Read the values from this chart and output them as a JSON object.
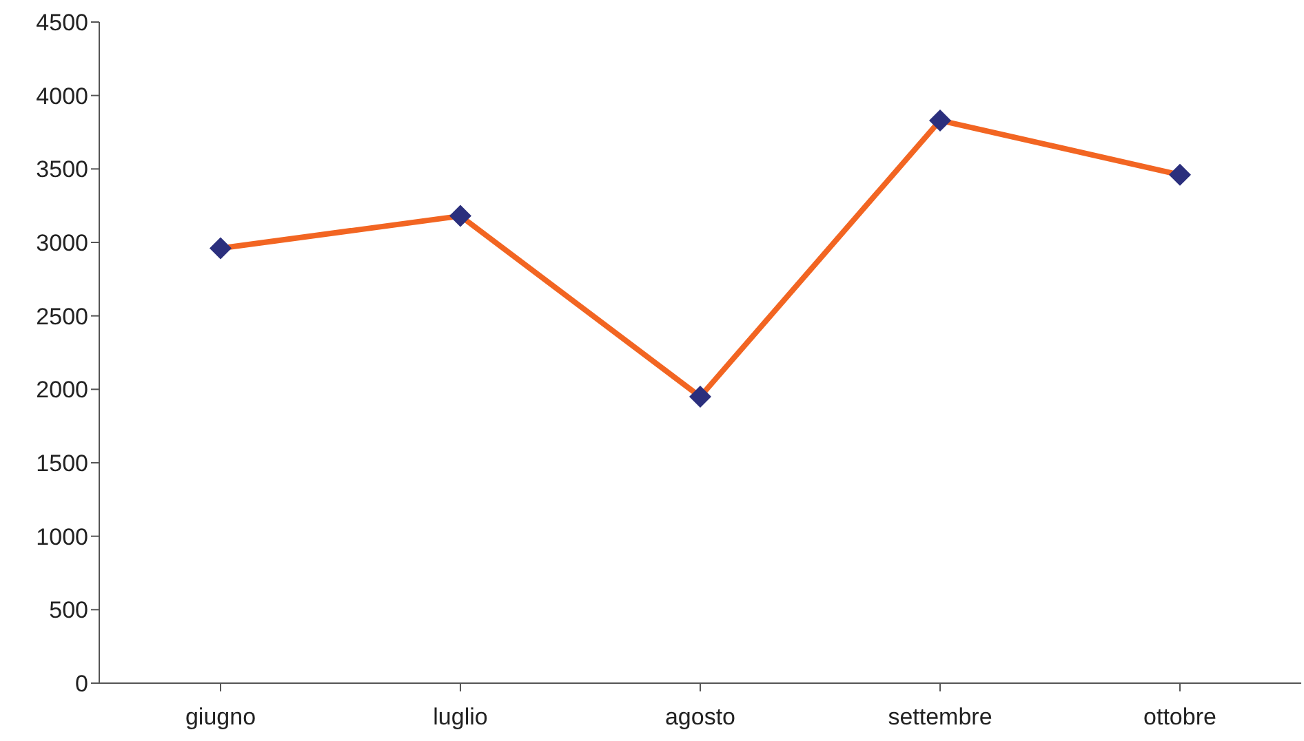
{
  "chart_data": {
    "type": "line",
    "categories": [
      "giugno",
      "luglio",
      "agosto",
      "settembre",
      "ottobre"
    ],
    "series": [
      {
        "color": "#f26522",
        "colors": [
          "#2b2f7d",
          "#2b2f7d",
          "#2b2f7d",
          "#2b2f7d",
          "#2b2f7d"
        ],
        "values": [
          2960,
          3180,
          1950,
          3830,
          3460
        ]
      }
    ],
    "marker": "diamond",
    "ylim": [
      0,
      4500
    ],
    "yticks": [
      0,
      500,
      1000,
      1500,
      2000,
      2500,
      3000,
      3500,
      4000,
      4500
    ],
    "grid": false
  }
}
